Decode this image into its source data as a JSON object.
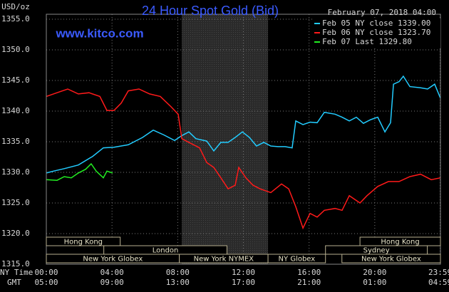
{
  "chart_data": {
    "type": "line",
    "title": "24 Hour Spot Gold (Bid)",
    "date_label": "February 07, 2018 04:00",
    "watermark": "www.kitco.com",
    "y_label": "USD/oz",
    "x_row_labels": [
      "NY Time",
      "GMT"
    ],
    "xlim": [
      0,
      24
    ],
    "ylim": [
      1315,
      1355
    ],
    "yticks": [
      {
        "value": 1315,
        "label": "1315.0"
      },
      {
        "value": 1320,
        "label": "1320.0"
      },
      {
        "value": 1325,
        "label": "1325.0"
      },
      {
        "value": 1330,
        "label": "1330.0"
      },
      {
        "value": 1335,
        "label": "1335.0"
      },
      {
        "value": 1340,
        "label": "1340.0"
      },
      {
        "value": 1345,
        "label": "1345.0"
      },
      {
        "value": 1350,
        "label": "1350.0"
      },
      {
        "value": 1355,
        "label": "1355.0"
      }
    ],
    "xticks": [
      {
        "value": 0,
        "label": "00:00"
      },
      {
        "value": 4,
        "label": "04:00"
      },
      {
        "value": 8,
        "label": "08:00"
      },
      {
        "value": 12,
        "label": "12:00"
      },
      {
        "value": 16,
        "label": "16:00"
      },
      {
        "value": 20,
        "label": "20:00"
      },
      {
        "value": 23.98,
        "label": "23:59"
      }
    ],
    "xticks_gmt": [
      {
        "value": 0,
        "label": "05:00"
      },
      {
        "value": 4,
        "label": "09:00"
      },
      {
        "value": 8,
        "label": "13:00"
      },
      {
        "value": 12,
        "label": "17:00"
      },
      {
        "value": 16,
        "label": "21:00"
      },
      {
        "value": 20,
        "label": "01:00"
      },
      {
        "value": 23.98,
        "label": "04:59"
      }
    ],
    "grid": true,
    "shaded_x": [
      8.25,
      13.5
    ],
    "session_rows": [
      [
        {
          "label": "Hong Kong",
          "start": 0,
          "end": 4.5
        },
        {
          "label": "Hong Kong",
          "start": 19.1,
          "end": 24
        }
      ],
      [
        {
          "label": "London",
          "start": 3.5,
          "end": 11
        },
        {
          "label": "Sydney",
          "start": 17,
          "end": 23.2
        }
      ],
      [
        {
          "label": "New York Globex",
          "start": 0,
          "end": 8.1
        },
        {
          "label": "New York NYMEX",
          "start": 8.1,
          "end": 13.5
        },
        {
          "label": "NY Globex",
          "start": 13.5,
          "end": 17
        },
        {
          "label": "New York Globex",
          "start": 18,
          "end": 24
        }
      ]
    ],
    "series": [
      {
        "name": "Feb 05 NY close 1339.00",
        "color": "#22ccff",
        "x": [
          0,
          0.43,
          1.09,
          1.95,
          2.82,
          3.47,
          4.12,
          4.99,
          5.86,
          6.51,
          7.16,
          7.81,
          8.25,
          8.68,
          9.11,
          9.77,
          10.2,
          10.63,
          11.07,
          11.5,
          11.94,
          12.37,
          12.8,
          13.24,
          13.67,
          14.11,
          14.54,
          14.97,
          15.19,
          15.63,
          16.06,
          16.49,
          16.93,
          17.58,
          18.01,
          18.45,
          18.88,
          19.31,
          19.75,
          20.18,
          20.62,
          20.96,
          21.14,
          21.48,
          21.74,
          22.14,
          22.79,
          23.22,
          23.65,
          24
        ],
        "values": [
          1329.9,
          1330.2,
          1330.6,
          1331.2,
          1332.6,
          1334.0,
          1334.1,
          1334.5,
          1335.7,
          1336.9,
          1336.1,
          1335.2,
          1336.0,
          1336.6,
          1335.5,
          1335.1,
          1333.5,
          1334.9,
          1334.9,
          1335.7,
          1336.6,
          1335.7,
          1334.3,
          1334.9,
          1334.3,
          1334.2,
          1334.2,
          1334.0,
          1338.4,
          1337.8,
          1338.2,
          1338.1,
          1339.8,
          1339.5,
          1339.0,
          1338.4,
          1339.0,
          1338.0,
          1338.6,
          1339.0,
          1336.6,
          1338.1,
          1344.4,
          1344.8,
          1345.7,
          1344.0,
          1343.8,
          1343.6,
          1344.4,
          1342.1
        ]
      },
      {
        "name": "Feb 06 NY close 1323.70",
        "color": "#ff1a1a",
        "x": [
          0,
          0.65,
          1.3,
          1.95,
          2.6,
          3.26,
          3.69,
          4.12,
          4.56,
          4.99,
          5.64,
          6.29,
          6.94,
          7.6,
          8.03,
          8.25,
          8.68,
          9.33,
          9.77,
          10.2,
          10.63,
          11.07,
          11.5,
          11.72,
          12.15,
          12.59,
          13.02,
          13.67,
          14.32,
          14.76,
          15.19,
          15.63,
          16.06,
          16.49,
          16.93,
          17.58,
          18.01,
          18.45,
          19.1,
          19.53,
          20.18,
          20.83,
          21.48,
          22.14,
          22.79,
          23.44,
          24
        ],
        "values": [
          1342.4,
          1343.0,
          1343.6,
          1342.8,
          1343.0,
          1342.4,
          1340.1,
          1340.1,
          1341.3,
          1343.3,
          1343.6,
          1342.8,
          1342.4,
          1340.7,
          1339.5,
          1335.5,
          1334.9,
          1334.0,
          1331.6,
          1330.8,
          1329.1,
          1327.3,
          1327.9,
          1330.8,
          1329.1,
          1327.9,
          1327.3,
          1326.7,
          1328.1,
          1327.3,
          1324.4,
          1320.9,
          1323.3,
          1322.7,
          1323.8,
          1324.1,
          1323.8,
          1326.2,
          1325.0,
          1326.2,
          1327.7,
          1328.5,
          1328.5,
          1329.3,
          1329.7,
          1328.8,
          1329.1
        ]
      },
      {
        "name": "Feb 07 Last 1329.80",
        "color": "#22ee22",
        "x": [
          0,
          0.65,
          1.09,
          1.52,
          1.95,
          2.39,
          2.73,
          3.04,
          3.47,
          3.69,
          4.04
        ],
        "values": [
          1328.8,
          1328.7,
          1329.3,
          1329.1,
          1329.9,
          1330.5,
          1331.4,
          1330.2,
          1329.1,
          1330.2,
          1329.9
        ]
      }
    ]
  }
}
